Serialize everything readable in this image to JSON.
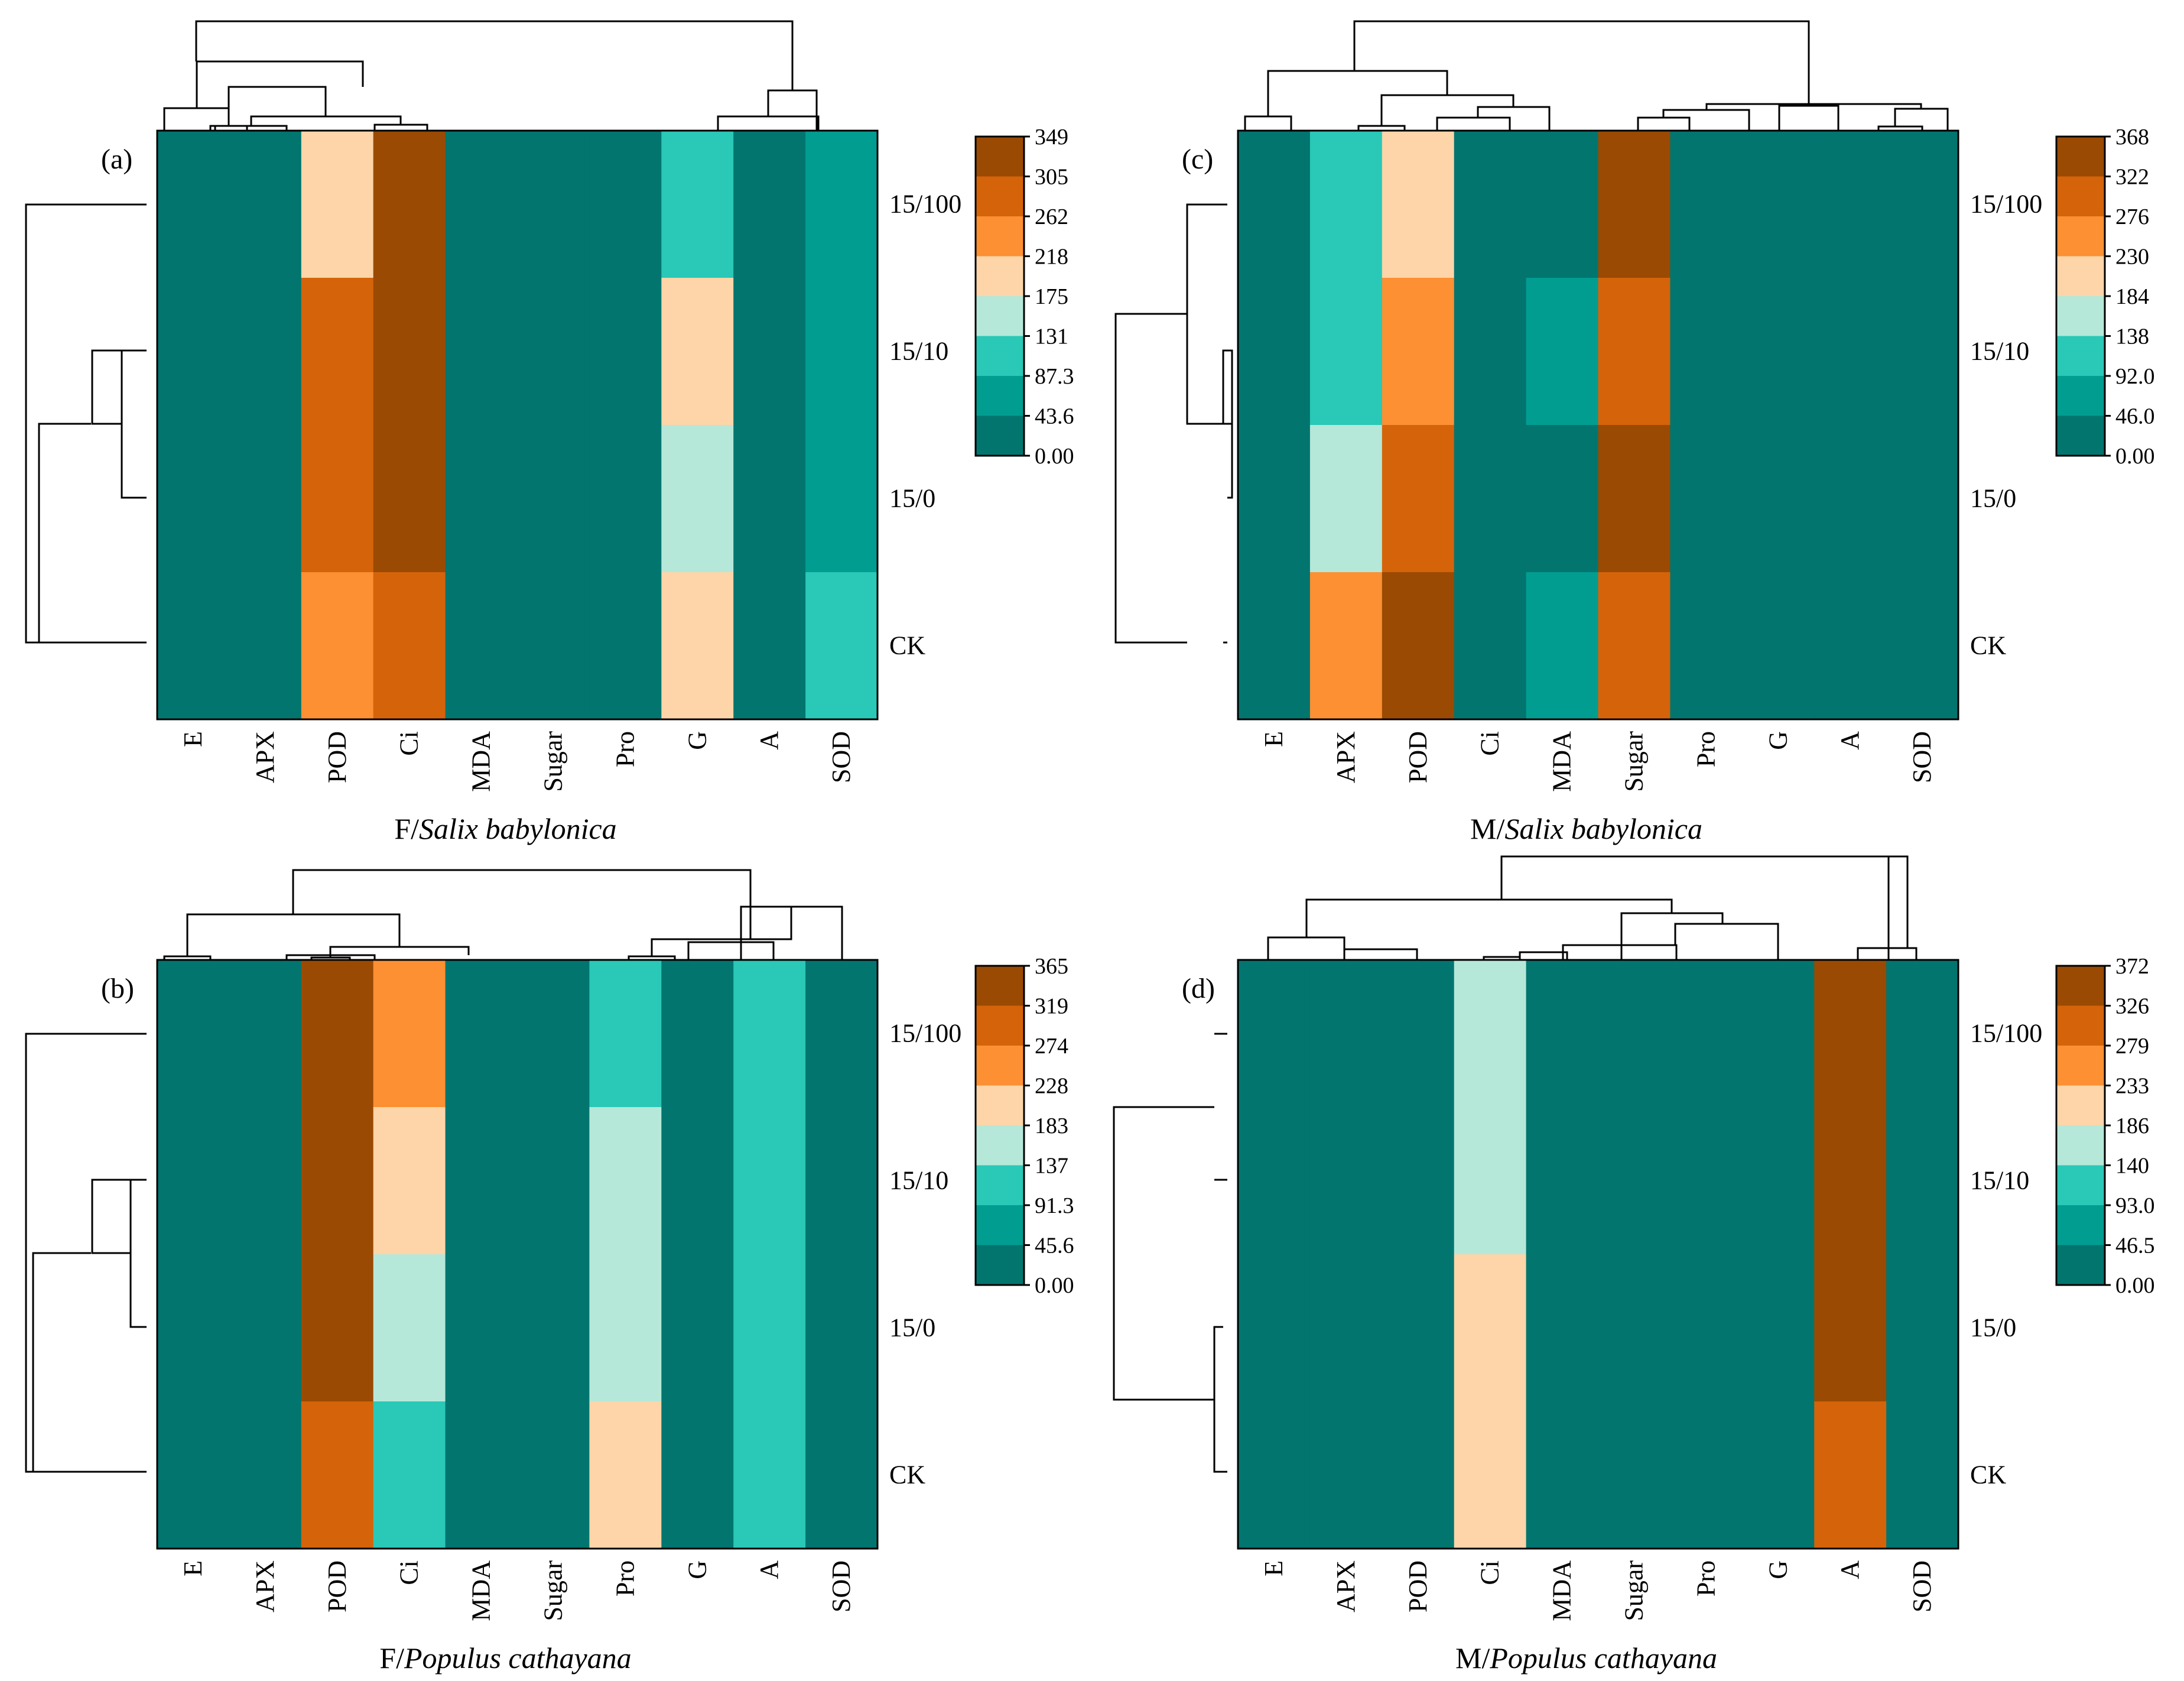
{
  "colors": {
    "palette": [
      "#02756F",
      "#019D91",
      "#29C8B7",
      "#B5E8D9",
      "#FDD5A8",
      "#FC9032",
      "#D5630A",
      "#9A4A02"
    ]
  },
  "chart_data": [
    {
      "type": "heatmap",
      "panel_label": "(a)",
      "caption_prefix": "F/",
      "caption_species": "Salix babylonica",
      "columns": [
        "E",
        "APX",
        "POD",
        "Ci",
        "MDA",
        "Sugar",
        "Pro",
        "G",
        "A",
        "SOD"
      ],
      "rows": [
        "15/100",
        "15/10",
        "15/0",
        "CK"
      ],
      "color_levels": [
        [
          0,
          0,
          4,
          7,
          0,
          0,
          0,
          2,
          0,
          1
        ],
        [
          0,
          0,
          6,
          7,
          0,
          0,
          0,
          4,
          0,
          1
        ],
        [
          0,
          0,
          6,
          7,
          0,
          0,
          0,
          3,
          0,
          1
        ],
        [
          0,
          0,
          5,
          6,
          0,
          0,
          0,
          4,
          0,
          2
        ]
      ],
      "scale_ticks": [
        "349",
        "305",
        "262",
        "218",
        "175",
        "131",
        "87.3",
        "43.6",
        "0.00"
      ]
    },
    {
      "type": "heatmap",
      "panel_label": "(b)",
      "caption_prefix": "F/",
      "caption_species": "Populus cathayana",
      "columns": [
        "E",
        "APX",
        "POD",
        "Ci",
        "MDA",
        "Sugar",
        "Pro",
        "G",
        "A",
        "SOD"
      ],
      "rows": [
        "15/100",
        "15/10",
        "15/0",
        "CK"
      ],
      "color_levels": [
        [
          0,
          0,
          7,
          5,
          0,
          0,
          2,
          0,
          2,
          0
        ],
        [
          0,
          0,
          7,
          4,
          0,
          0,
          3,
          0,
          2,
          0
        ],
        [
          0,
          0,
          7,
          3,
          0,
          0,
          3,
          0,
          2,
          0
        ],
        [
          0,
          0,
          6,
          2,
          0,
          0,
          4,
          0,
          2,
          0
        ]
      ],
      "scale_ticks": [
        "365",
        "319",
        "274",
        "228",
        "183",
        "137",
        "91.3",
        "45.6",
        "0.00"
      ]
    },
    {
      "type": "heatmap",
      "panel_label": "(c)",
      "caption_prefix": "M/",
      "caption_species": "Salix babylonica",
      "columns": [
        "E",
        "APX",
        "POD",
        "Ci",
        "MDA",
        "Sugar",
        "Pro",
        "G",
        "A",
        "SOD"
      ],
      "rows": [
        "15/100",
        "15/10",
        "15/0",
        "CK"
      ],
      "color_levels": [
        [
          0,
          2,
          4,
          0,
          0,
          7,
          0,
          0,
          0,
          0
        ],
        [
          0,
          2,
          5,
          0,
          1,
          6,
          0,
          0,
          0,
          0
        ],
        [
          0,
          3,
          6,
          0,
          0,
          7,
          0,
          0,
          0,
          0
        ],
        [
          0,
          5,
          7,
          0,
          1,
          6,
          0,
          0,
          0,
          0
        ]
      ],
      "scale_ticks": [
        "368",
        "322",
        "276",
        "230",
        "184",
        "138",
        "92.0",
        "46.0",
        "0.00"
      ]
    },
    {
      "type": "heatmap",
      "panel_label": "(d)",
      "caption_prefix": "M/",
      "caption_species": "Populus cathayana",
      "columns": [
        "E",
        "APX",
        "POD",
        "Ci",
        "MDA",
        "Sugar",
        "Pro",
        "G",
        "A",
        "SOD"
      ],
      "rows": [
        "15/100",
        "15/10",
        "15/0",
        "CK"
      ],
      "color_levels": [
        [
          0,
          0,
          0,
          3,
          0,
          0,
          0,
          0,
          7,
          0
        ],
        [
          0,
          0,
          0,
          3,
          0,
          0,
          0,
          0,
          7,
          0
        ],
        [
          0,
          0,
          0,
          4,
          0,
          0,
          0,
          0,
          7,
          0
        ],
        [
          0,
          0,
          0,
          4,
          0,
          0,
          0,
          0,
          6,
          0
        ]
      ],
      "scale_ticks": [
        "372",
        "326",
        "279",
        "233",
        "186",
        "140",
        "93.0",
        "46.5",
        "0.00"
      ]
    }
  ]
}
